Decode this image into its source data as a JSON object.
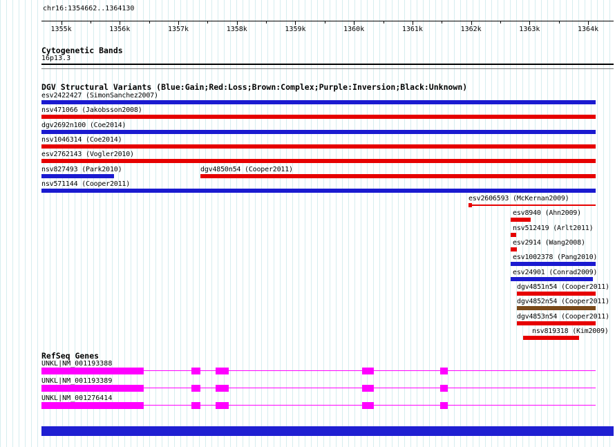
{
  "header": {
    "region": "chr16:1354662..1364130",
    "ticks": [
      "1355k",
      "1356k",
      "1357k",
      "1358k",
      "1359k",
      "1360k",
      "1361k",
      "1362k",
      "1363k",
      "1364k"
    ]
  },
  "cytobands": {
    "title": "Cytogenetic Bands",
    "band": "16p13.3"
  },
  "dgv": {
    "title": "DGV Structural Variants (Blue:Gain;Red:Loss;Brown:Complex;Purple:Inversion;Black:Unknown)",
    "palette": {
      "gain": "#1a1ad0",
      "loss": "#e60000",
      "complex": "#7a4a1a",
      "inversion": "#800080",
      "unknown": "#000000"
    },
    "rows": [
      [
        {
          "label": "esv2422427 (SimonSanchez2007)",
          "type": "gain",
          "start": 0,
          "end": 802,
          "label_x": 0,
          "shape": "thick"
        }
      ],
      [
        {
          "label": "nsv471066 (Jakobsson2008)",
          "type": "loss",
          "start": 0,
          "end": 802,
          "label_x": 0,
          "shape": "thick"
        }
      ],
      [
        {
          "label": "dgv2692n100 (Coe2014)",
          "type": "gain",
          "start": 0,
          "end": 802,
          "label_x": 0,
          "shape": "thick"
        }
      ],
      [
        {
          "label": "nsv1046314 (Coe2014)",
          "type": "loss",
          "start": 0,
          "end": 802,
          "label_x": 0,
          "shape": "thick"
        }
      ],
      [
        {
          "label": "esv2762143 (Vogler2010)",
          "type": "loss",
          "start": 0,
          "end": 802,
          "label_x": 0,
          "shape": "thick"
        }
      ],
      [
        {
          "label": "nsv827493 (Park2010)",
          "type": "gain",
          "start": 0,
          "end": 105,
          "label_x": 0,
          "shape": "thick"
        },
        {
          "label": "dgv4850n54 (Cooper2011)",
          "type": "loss",
          "start": 230,
          "end": 802,
          "label_x": 230,
          "shape": "thick"
        }
      ],
      [
        {
          "label": "nsv571144 (Cooper2011)",
          "type": "gain",
          "start": 0,
          "end": 802,
          "label_x": 0,
          "shape": "thick"
        }
      ],
      [
        {
          "label": "esv2606593 (McKernan2009)",
          "type": "loss",
          "start": 618,
          "end": 802,
          "label_x": 618,
          "shape": "thin"
        }
      ],
      [
        {
          "label": "esv8940 (Ahn2009)",
          "type": "loss",
          "start": 679,
          "end": 708,
          "label_x": 682,
          "shape": "thick"
        }
      ],
      [
        {
          "label": "nsv512419 (Arlt2011)",
          "type": "loss",
          "start": 679,
          "end": 687,
          "label_x": 682,
          "shape": "thick"
        }
      ],
      [
        {
          "label": "esv2914 (Wang2008)",
          "type": "loss",
          "start": 679,
          "end": 688,
          "label_x": 682,
          "shape": "thick"
        }
      ],
      [
        {
          "label": "esv1002378 (Pang2010)",
          "type": "gain",
          "start": 679,
          "end": 802,
          "label_x": 682,
          "shape": "thick"
        }
      ],
      [
        {
          "label": "esv24901 (Conrad2009)",
          "type": "gain",
          "start": 679,
          "end": 798,
          "label_x": 682,
          "shape": "thick"
        }
      ],
      [
        {
          "label": "dgv4851n54 (Cooper2011)",
          "type": "loss",
          "start": 688,
          "end": 802,
          "label_x": 688,
          "shape": "thick"
        }
      ],
      [
        {
          "label": "dgv4852n54 (Cooper2011)",
          "type": "complex",
          "start": 688,
          "end": 802,
          "label_x": 688,
          "shape": "thick"
        }
      ],
      [
        {
          "label": "dgv4853n54 (Cooper2011)",
          "type": "loss",
          "start": 688,
          "end": 802,
          "label_x": 688,
          "shape": "thick"
        }
      ],
      [
        {
          "label": "nsv819318 (Kim2009)",
          "type": "loss",
          "start": 697,
          "end": 778,
          "label_x": 710,
          "shape": "thick"
        }
      ]
    ]
  },
  "refseq": {
    "title": "RefSeq Genes",
    "color": "#ff00ff",
    "genes": [
      {
        "label": "UNKL|NM_001193388",
        "span": [
          0,
          802
        ],
        "exons": [
          [
            0,
            148
          ],
          [
            217,
            230
          ],
          [
            252,
            271
          ],
          [
            464,
            481
          ],
          [
            577,
            588
          ]
        ]
      },
      {
        "label": "UNKL|NM_001193389",
        "span": [
          0,
          802
        ],
        "exons": [
          [
            0,
            148
          ],
          [
            217,
            230
          ],
          [
            252,
            271
          ],
          [
            464,
            481
          ],
          [
            577,
            588
          ]
        ]
      },
      {
        "label": "UNKL|NM_001276414",
        "span": [
          0,
          802
        ],
        "exons": [
          [
            0,
            148
          ],
          [
            217,
            230
          ],
          [
            252,
            271
          ],
          [
            464,
            481
          ],
          [
            577,
            588
          ]
        ]
      }
    ]
  },
  "footer": {
    "color": "#1f1fd2"
  }
}
